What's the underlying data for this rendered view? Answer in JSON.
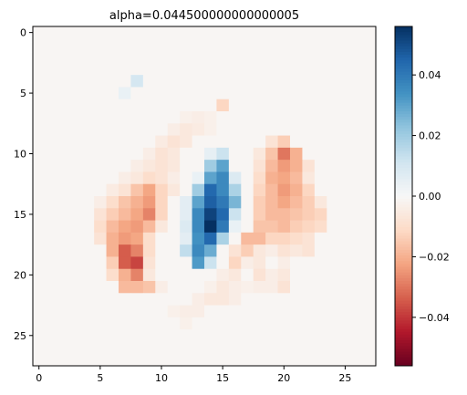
{
  "chart_data": {
    "type": "heatmap",
    "title": "alpha=0.044500000000000005",
    "rows": 28,
    "cols": 28,
    "x_ticks": [
      0,
      5,
      10,
      15,
      20,
      25
    ],
    "y_ticks": [
      0,
      5,
      10,
      15,
      20,
      25
    ],
    "x_tick_labels": [
      "0",
      "5",
      "10",
      "15",
      "20",
      "25"
    ],
    "y_tick_labels": [
      "0",
      "5",
      "10",
      "15",
      "20",
      "25"
    ],
    "colormap": "RdBu",
    "vmin": -0.056,
    "vmax": 0.056,
    "colorbar_ticks": [
      0.04,
      0.02,
      0.0,
      -0.02,
      -0.04
    ],
    "colorbar_tick_labels": [
      "0.04",
      "0.02",
      "0.00",
      "−0.02",
      "−0.04"
    ],
    "background_value": -0.001,
    "cells": [
      [
        4,
        8,
        0.01
      ],
      [
        5,
        7,
        0.004
      ],
      [
        6,
        15,
        -0.012
      ],
      [
        7,
        12,
        -0.003
      ],
      [
        7,
        13,
        -0.004
      ],
      [
        7,
        14,
        -0.003
      ],
      [
        8,
        11,
        -0.004
      ],
      [
        8,
        12,
        -0.006
      ],
      [
        8,
        13,
        -0.005
      ],
      [
        8,
        14,
        -0.003
      ],
      [
        9,
        10,
        -0.005
      ],
      [
        9,
        11,
        -0.008
      ],
      [
        9,
        12,
        -0.006
      ],
      [
        9,
        19,
        -0.008
      ],
      [
        9,
        20,
        -0.014
      ],
      [
        10,
        9,
        -0.004
      ],
      [
        10,
        10,
        -0.008
      ],
      [
        10,
        11,
        -0.006
      ],
      [
        10,
        14,
        0.005
      ],
      [
        10,
        15,
        0.012
      ],
      [
        10,
        18,
        -0.006
      ],
      [
        10,
        19,
        -0.016
      ],
      [
        10,
        20,
        -0.03
      ],
      [
        10,
        21,
        -0.02
      ],
      [
        11,
        8,
        -0.004
      ],
      [
        11,
        9,
        -0.006
      ],
      [
        11,
        10,
        -0.008
      ],
      [
        11,
        11,
        -0.006
      ],
      [
        11,
        14,
        0.02
      ],
      [
        11,
        15,
        0.03
      ],
      [
        11,
        18,
        -0.008
      ],
      [
        11,
        19,
        -0.018
      ],
      [
        11,
        20,
        -0.024
      ],
      [
        11,
        21,
        -0.02
      ],
      [
        11,
        22,
        -0.008
      ],
      [
        12,
        7,
        -0.004
      ],
      [
        12,
        8,
        -0.006
      ],
      [
        12,
        9,
        -0.01
      ],
      [
        12,
        10,
        -0.008
      ],
      [
        12,
        11,
        -0.004
      ],
      [
        12,
        13,
        0.004
      ],
      [
        12,
        14,
        0.03
      ],
      [
        12,
        15,
        0.036
      ],
      [
        12,
        16,
        0.008
      ],
      [
        12,
        18,
        -0.01
      ],
      [
        12,
        19,
        -0.02
      ],
      [
        12,
        20,
        -0.022
      ],
      [
        12,
        21,
        -0.018
      ],
      [
        12,
        22,
        -0.006
      ],
      [
        13,
        6,
        -0.005
      ],
      [
        13,
        7,
        -0.008
      ],
      [
        13,
        8,
        -0.016
      ],
      [
        13,
        9,
        -0.022
      ],
      [
        13,
        10,
        -0.012
      ],
      [
        13,
        11,
        -0.006
      ],
      [
        13,
        13,
        0.02
      ],
      [
        13,
        14,
        0.044
      ],
      [
        13,
        15,
        0.036
      ],
      [
        13,
        16,
        0.018
      ],
      [
        13,
        18,
        -0.012
      ],
      [
        13,
        19,
        -0.018
      ],
      [
        13,
        20,
        -0.024
      ],
      [
        13,
        21,
        -0.02
      ],
      [
        13,
        22,
        -0.012
      ],
      [
        14,
        5,
        -0.004
      ],
      [
        14,
        6,
        -0.01
      ],
      [
        14,
        7,
        -0.016
      ],
      [
        14,
        8,
        -0.02
      ],
      [
        14,
        9,
        -0.024
      ],
      [
        14,
        10,
        -0.012
      ],
      [
        14,
        12,
        0.006
      ],
      [
        14,
        13,
        0.03
      ],
      [
        14,
        14,
        0.046
      ],
      [
        14,
        15,
        0.04
      ],
      [
        14,
        16,
        0.026
      ],
      [
        14,
        18,
        -0.014
      ],
      [
        14,
        19,
        -0.018
      ],
      [
        14,
        20,
        -0.022
      ],
      [
        14,
        21,
        -0.018
      ],
      [
        14,
        22,
        -0.014
      ],
      [
        14,
        23,
        -0.006
      ],
      [
        15,
        5,
        -0.008
      ],
      [
        15,
        6,
        -0.014
      ],
      [
        15,
        7,
        -0.018
      ],
      [
        15,
        8,
        -0.022
      ],
      [
        15,
        9,
        -0.028
      ],
      [
        15,
        10,
        -0.012
      ],
      [
        15,
        12,
        0.006
      ],
      [
        15,
        13,
        0.036
      ],
      [
        15,
        14,
        0.052
      ],
      [
        15,
        15,
        0.044
      ],
      [
        15,
        16,
        0.012
      ],
      [
        15,
        18,
        -0.014
      ],
      [
        15,
        19,
        -0.018
      ],
      [
        15,
        20,
        -0.018
      ],
      [
        15,
        21,
        -0.016
      ],
      [
        15,
        22,
        -0.014
      ],
      [
        15,
        23,
        -0.012
      ],
      [
        16,
        5,
        -0.01
      ],
      [
        16,
        6,
        -0.018
      ],
      [
        16,
        7,
        -0.022
      ],
      [
        16,
        8,
        -0.024
      ],
      [
        16,
        9,
        -0.018
      ],
      [
        16,
        10,
        -0.006
      ],
      [
        16,
        12,
        0.008
      ],
      [
        16,
        13,
        0.036
      ],
      [
        16,
        14,
        0.056
      ],
      [
        16,
        15,
        0.04
      ],
      [
        16,
        16,
        0.004
      ],
      [
        16,
        18,
        -0.016
      ],
      [
        16,
        19,
        -0.016
      ],
      [
        16,
        20,
        -0.018
      ],
      [
        16,
        21,
        -0.014
      ],
      [
        16,
        22,
        -0.012
      ],
      [
        16,
        23,
        -0.01
      ],
      [
        17,
        5,
        -0.008
      ],
      [
        17,
        6,
        -0.02
      ],
      [
        17,
        7,
        -0.024
      ],
      [
        17,
        8,
        -0.022
      ],
      [
        17,
        9,
        -0.01
      ],
      [
        17,
        12,
        0.006
      ],
      [
        17,
        13,
        0.034
      ],
      [
        17,
        14,
        0.044
      ],
      [
        17,
        15,
        0.018
      ],
      [
        17,
        17,
        -0.018
      ],
      [
        17,
        18,
        -0.018
      ],
      [
        17,
        19,
        -0.012
      ],
      [
        17,
        20,
        -0.012
      ],
      [
        17,
        21,
        -0.01
      ],
      [
        17,
        22,
        -0.008
      ],
      [
        18,
        6,
        -0.02
      ],
      [
        18,
        7,
        -0.034
      ],
      [
        18,
        8,
        -0.028
      ],
      [
        18,
        9,
        -0.01
      ],
      [
        18,
        12,
        0.014
      ],
      [
        18,
        13,
        0.036
      ],
      [
        18,
        14,
        0.028
      ],
      [
        18,
        16,
        -0.008
      ],
      [
        18,
        17,
        -0.014
      ],
      [
        18,
        18,
        -0.006
      ],
      [
        18,
        19,
        -0.004
      ],
      [
        18,
        20,
        -0.008
      ],
      [
        18,
        21,
        -0.006
      ],
      [
        18,
        22,
        -0.008
      ],
      [
        19,
        6,
        -0.014
      ],
      [
        19,
        7,
        -0.034
      ],
      [
        19,
        8,
        -0.038
      ],
      [
        19,
        9,
        -0.008
      ],
      [
        19,
        13,
        0.032
      ],
      [
        19,
        14,
        0.012
      ],
      [
        19,
        16,
        -0.012
      ],
      [
        19,
        17,
        -0.004
      ],
      [
        19,
        18,
        -0.006
      ],
      [
        19,
        20,
        -0.004
      ],
      [
        20,
        6,
        -0.01
      ],
      [
        20,
        7,
        -0.02
      ],
      [
        20,
        8,
        -0.028
      ],
      [
        20,
        9,
        -0.006
      ],
      [
        20,
        15,
        -0.004
      ],
      [
        20,
        16,
        -0.006
      ],
      [
        20,
        18,
        -0.008
      ],
      [
        20,
        19,
        -0.004
      ],
      [
        20,
        20,
        -0.006
      ],
      [
        21,
        7,
        -0.018
      ],
      [
        21,
        8,
        -0.018
      ],
      [
        21,
        9,
        -0.016
      ],
      [
        21,
        10,
        -0.004
      ],
      [
        21,
        14,
        -0.003
      ],
      [
        21,
        15,
        -0.006
      ],
      [
        21,
        16,
        -0.004
      ],
      [
        21,
        17,
        -0.003
      ],
      [
        21,
        18,
        -0.004
      ],
      [
        21,
        19,
        -0.004
      ],
      [
        21,
        20,
        -0.008
      ],
      [
        22,
        13,
        -0.004
      ],
      [
        22,
        14,
        -0.006
      ],
      [
        22,
        15,
        -0.006
      ],
      [
        22,
        16,
        -0.004
      ],
      [
        23,
        11,
        -0.003
      ],
      [
        23,
        12,
        -0.004
      ],
      [
        23,
        13,
        -0.004
      ],
      [
        24,
        12,
        -0.003
      ]
    ]
  }
}
